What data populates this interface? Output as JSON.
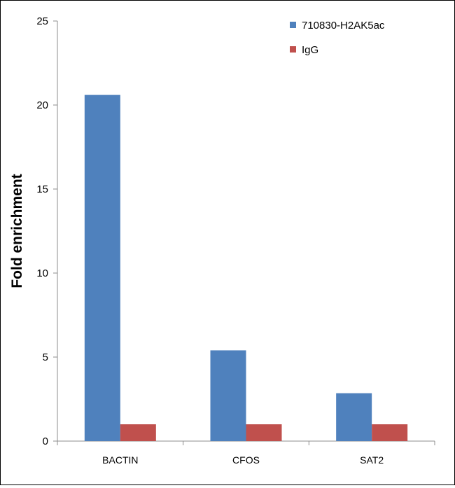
{
  "chart_data": {
    "type": "bar",
    "title": "",
    "xlabel": "",
    "ylabel": "Fold enrichment",
    "ylim": [
      0,
      25
    ],
    "yticks": [
      0,
      5,
      10,
      15,
      20,
      25
    ],
    "categories": [
      "BACTIN",
      "CFOS",
      "SAT2"
    ],
    "series": [
      {
        "name": "710830-H2AK5ac",
        "color": "#4F81BD",
        "values": [
          20.6,
          5.4,
          2.85
        ]
      },
      {
        "name": "IgG",
        "color": "#C0504D",
        "values": [
          1.0,
          1.0,
          1.0
        ]
      }
    ],
    "grid": false,
    "legend_position": "top-right"
  }
}
